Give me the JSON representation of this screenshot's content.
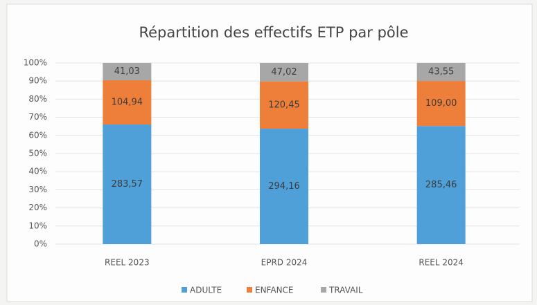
{
  "chart_data": {
    "type": "bar",
    "stacking": "percent",
    "title": "Répartition des effectifs ETP par pôle",
    "categories": [
      "REEL 2023",
      "EPRD 2024",
      "REEL 2024"
    ],
    "series": [
      {
        "name": "ADULTE",
        "color": "#4f9fd9",
        "values": [
          283.57,
          294.16,
          285.46
        ],
        "value_labels": [
          "283,57",
          "294,16",
          "285,46"
        ]
      },
      {
        "name": "ENFANCE",
        "color": "#ee7f3a",
        "values": [
          104.94,
          120.45,
          109.0
        ],
        "value_labels": [
          "104,94",
          "120,45",
          "109,00"
        ]
      },
      {
        "name": "TRAVAIL",
        "color": "#a7a7a7",
        "values": [
          41.03,
          47.02,
          43.55
        ],
        "value_labels": [
          "41,03",
          "47,02",
          "43,55"
        ]
      }
    ],
    "ylim": [
      0,
      100
    ],
    "yticks": [
      {
        "value": 0,
        "label": "0%"
      },
      {
        "value": 10,
        "label": "10%"
      },
      {
        "value": 20,
        "label": "20%"
      },
      {
        "value": 30,
        "label": "30%"
      },
      {
        "value": 40,
        "label": "40%"
      },
      {
        "value": 50,
        "label": "50%"
      },
      {
        "value": 60,
        "label": "60%"
      },
      {
        "value": 70,
        "label": "70%"
      },
      {
        "value": 80,
        "label": "80%"
      },
      {
        "value": 90,
        "label": "90%"
      },
      {
        "value": 100,
        "label": "100%"
      }
    ],
    "grid": true,
    "legend": "bottom"
  }
}
